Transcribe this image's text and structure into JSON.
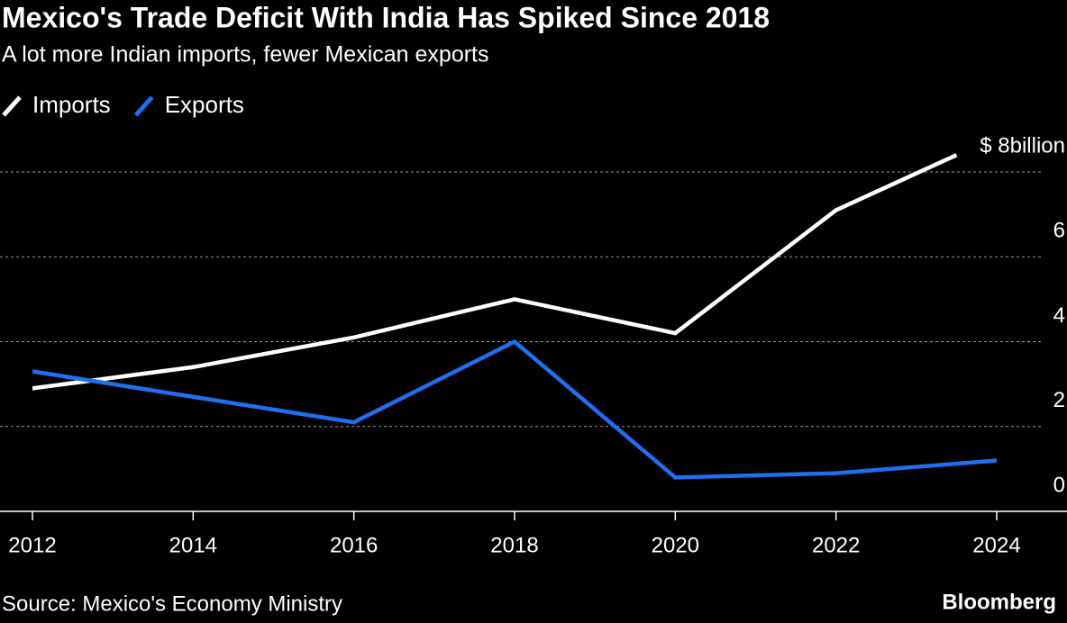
{
  "chart_data": {
    "type": "line",
    "title": "Mexico's Trade Deficit With India Has Spiked Since 2018",
    "subtitle": "A lot more Indian imports, fewer Mexican exports",
    "series": [
      {
        "name": "Imports",
        "color": "#ffffff",
        "x": [
          2012,
          2014,
          2016,
          2018,
          2020,
          2022,
          2023.5
        ],
        "values": [
          2.9,
          3.4,
          4.1,
          5.0,
          4.2,
          7.1,
          8.4
        ]
      },
      {
        "name": "Exports",
        "color": "#1f6ff0",
        "x": [
          2012,
          2014,
          2016,
          2018,
          2020,
          2022,
          2024
        ],
        "values": [
          3.3,
          2.7,
          2.1,
          4.0,
          0.8,
          0.9,
          1.2
        ]
      }
    ],
    "xlim": [
      2012,
      2024
    ],
    "xticks": [
      2012,
      2014,
      2016,
      2018,
      2020,
      2022,
      2024
    ],
    "ylim": [
      0,
      8
    ],
    "yticks": [
      0,
      2,
      4,
      6,
      {
        "value": 8,
        "label": "$ 8billion"
      }
    ],
    "grid": true,
    "source": "Source: Mexico's Economy Ministry",
    "brand": "Bloomberg"
  }
}
